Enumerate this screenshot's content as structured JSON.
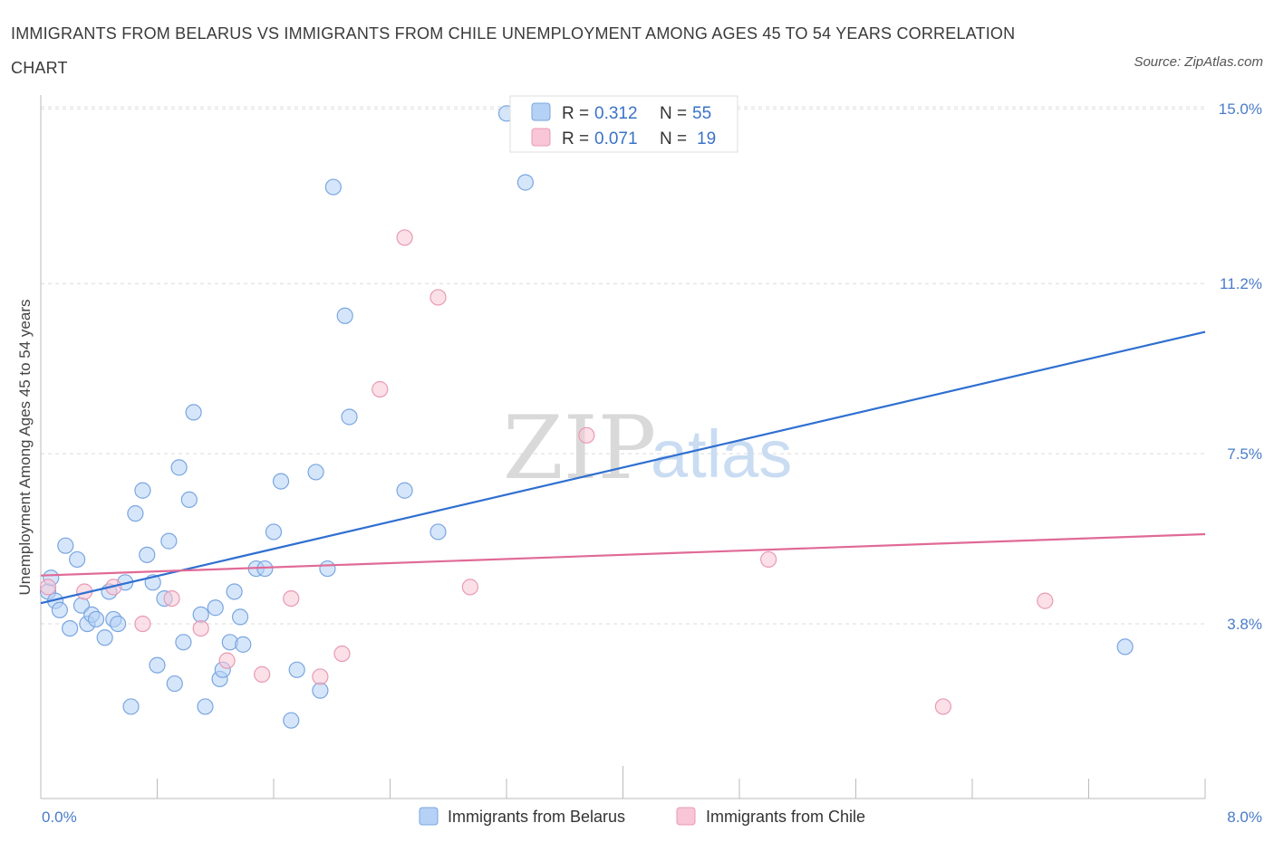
{
  "title": "IMMIGRANTS FROM BELARUS VS IMMIGRANTS FROM CHILE UNEMPLOYMENT AMONG AGES 45 TO 54 YEARS CORRELATION CHART",
  "source": "Source: ZipAtlas.com",
  "watermark": {
    "zip": "ZIP",
    "atlas": "atlas"
  },
  "legend": {
    "r_label": "R =",
    "n_label": "N =",
    "entries": [
      {
        "r": "0.312",
        "n": "55",
        "color": "#b5d1f5",
        "stroke": "#7aa6e0"
      },
      {
        "r": "0.071",
        "n": "19",
        "color": "#f8c6d6",
        "stroke": "#e89ab4"
      }
    ]
  },
  "bottom_legend": [
    {
      "label": "Immigrants from Belarus",
      "color": "#b5d1f5",
      "stroke": "#7aa6e0"
    },
    {
      "label": "Immigrants from Chile",
      "color": "#f8c6d6",
      "stroke": "#e89ab4"
    }
  ],
  "chart_data": {
    "type": "scatter",
    "title": "IMMIGRANTS FROM BELARUS VS IMMIGRANTS FROM CHILE UNEMPLOYMENT AMONG AGES 45 TO 54 YEARS CORRELATION CHART",
    "xlabel": "",
    "ylabel": "Unemployment Among Ages 45 to 54 years",
    "xlim": [
      0,
      8.0
    ],
    "ylim": [
      0,
      15.3
    ],
    "x_tick_labels": [
      "0.0%",
      "8.0%"
    ],
    "y_tick_values": [
      3.8,
      7.5,
      11.2,
      15.0
    ],
    "y_tick_labels": [
      "3.8%",
      "7.5%",
      "11.2%",
      "15.0%"
    ],
    "grid": true,
    "legend_position": "top-center",
    "series": [
      {
        "name": "Immigrants from Belarus",
        "color": "#7aa6e0",
        "trend": {
          "x": [
            0.0,
            8.0
          ],
          "y": [
            4.25,
            10.15
          ],
          "color": "#2f6fd0"
        },
        "points": [
          [
            0.05,
            4.5
          ],
          [
            0.07,
            4.8
          ],
          [
            0.1,
            4.3
          ],
          [
            0.13,
            4.1
          ],
          [
            0.17,
            5.5
          ],
          [
            0.2,
            3.7
          ],
          [
            0.25,
            5.2
          ],
          [
            0.28,
            4.2
          ],
          [
            0.32,
            3.8
          ],
          [
            0.35,
            4.0
          ],
          [
            0.38,
            3.9
          ],
          [
            0.44,
            3.5
          ],
          [
            0.47,
            4.5
          ],
          [
            0.5,
            3.9
          ],
          [
            0.53,
            3.8
          ],
          [
            0.58,
            4.7
          ],
          [
            0.62,
            2.0
          ],
          [
            0.65,
            6.2
          ],
          [
            0.7,
            6.7
          ],
          [
            0.73,
            5.3
          ],
          [
            0.77,
            4.7
          ],
          [
            0.8,
            2.9
          ],
          [
            0.85,
            4.35
          ],
          [
            0.88,
            5.6
          ],
          [
            0.92,
            2.5
          ],
          [
            0.95,
            7.2
          ],
          [
            0.98,
            3.4
          ],
          [
            1.02,
            6.5
          ],
          [
            1.05,
            8.4
          ],
          [
            1.1,
            4.0
          ],
          [
            1.13,
            2.0
          ],
          [
            1.2,
            4.15
          ],
          [
            1.23,
            2.6
          ],
          [
            1.25,
            2.8
          ],
          [
            1.3,
            3.4
          ],
          [
            1.33,
            4.5
          ],
          [
            1.37,
            3.95
          ],
          [
            1.39,
            3.35
          ],
          [
            1.48,
            5.0
          ],
          [
            1.54,
            5.0
          ],
          [
            1.6,
            5.8
          ],
          [
            1.65,
            6.9
          ],
          [
            1.72,
            1.7
          ],
          [
            1.76,
            2.8
          ],
          [
            1.89,
            7.1
          ],
          [
            1.92,
            2.35
          ],
          [
            1.97,
            5.0
          ],
          [
            2.01,
            13.3
          ],
          [
            2.09,
            10.5
          ],
          [
            2.12,
            8.3
          ],
          [
            2.5,
            6.7
          ],
          [
            2.73,
            5.8
          ],
          [
            3.2,
            14.9
          ],
          [
            3.33,
            13.4
          ],
          [
            7.45,
            3.3
          ]
        ]
      },
      {
        "name": "Immigrants from Chile",
        "color": "#e89ab4",
        "trend": {
          "x": [
            0.0,
            8.0
          ],
          "y": [
            4.85,
            5.75
          ],
          "color": "#e06a96"
        },
        "points": [
          [
            0.05,
            4.6
          ],
          [
            0.3,
            4.5
          ],
          [
            0.5,
            4.6
          ],
          [
            0.7,
            3.8
          ],
          [
            0.9,
            4.35
          ],
          [
            1.1,
            3.7
          ],
          [
            1.28,
            3.0
          ],
          [
            1.52,
            2.7
          ],
          [
            1.72,
            4.35
          ],
          [
            1.92,
            2.65
          ],
          [
            2.07,
            3.15
          ],
          [
            2.33,
            8.9
          ],
          [
            2.5,
            12.2
          ],
          [
            2.73,
            10.9
          ],
          [
            2.95,
            4.6
          ],
          [
            3.75,
            7.9
          ],
          [
            5.0,
            5.2
          ],
          [
            6.2,
            2.0
          ],
          [
            6.9,
            4.3
          ]
        ]
      }
    ]
  }
}
